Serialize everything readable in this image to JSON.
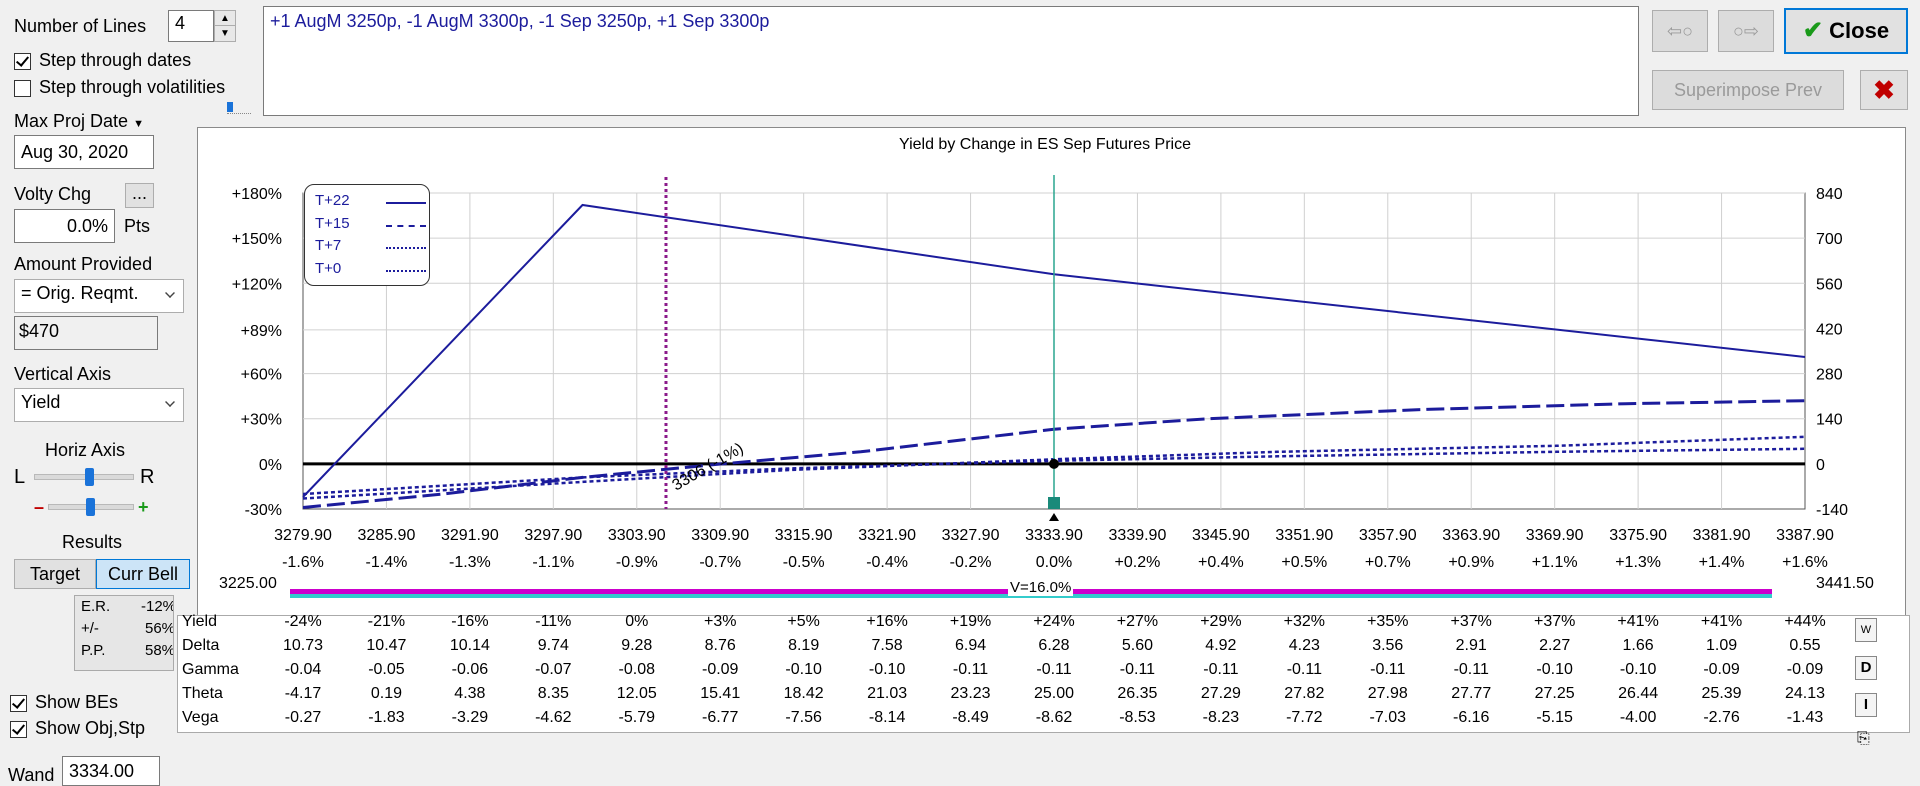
{
  "controls": {
    "num_lines_label": "Number of Lines",
    "num_lines_value": "4",
    "step_dates_label": "Step through dates",
    "step_dates_checked": true,
    "step_vols_label": "Step through volatilities",
    "step_vols_checked": false,
    "max_proj_label": "Max Proj Date",
    "max_proj_value": "Aug 30, 2020",
    "volty_label": "Volty Chg",
    "volty_btn": "...",
    "volty_value": "0.0%",
    "volty_unit": "Pts",
    "amount_label": "Amount Provided",
    "amount_select": "= Orig. Reqmt.",
    "amount_value": "$470",
    "vaxis_label": "Vertical Axis",
    "vaxis_select": "Yield",
    "haxis_label": "Horiz Axis",
    "haxis_l": "L",
    "haxis_r": "R",
    "minus": "–",
    "plus": "+",
    "results_label": "Results",
    "target_btn": "Target",
    "currbell_btn": "Curr Bell",
    "er_label": "E.R.",
    "er_value": "-12%",
    "pm_label": "+/-",
    "pm_value": "56%",
    "pp_label": "P.P.",
    "pp_value": "58%",
    "show_bes_label": "Show BEs",
    "show_obj_label": "Show Obj,Stp",
    "wand_label": "Wand",
    "wand_value": "3334.00"
  },
  "position_text": "+1 AugM 3250p, -1 AugM 3300p, -1 Sep 3250p, +1 Sep 3300p",
  "buttons": {
    "back": "⇦○",
    "fwd": "○⇨",
    "close": "Close",
    "superimpose": "Superimpose Prev"
  },
  "colors": {
    "series": "#1c1c9c",
    "accent_magenta": "#cc00cc",
    "accent_cyan": "#33cccc",
    "teal_line": "#2aa58f",
    "purple_dotted": "#8b1a8b",
    "close_x": "#c00000"
  },
  "chart_data": {
    "type": "line",
    "title": "Yield by Change in ES Sep Futures Price",
    "x_ticks": [
      "3279.90",
      "3285.90",
      "3291.90",
      "3297.90",
      "3303.90",
      "3309.90",
      "3315.90",
      "3321.90",
      "3327.90",
      "3333.90",
      "3339.90",
      "3345.90",
      "3351.90",
      "3357.90",
      "3363.90",
      "3369.90",
      "3375.90",
      "3381.90",
      "3387.90"
    ],
    "x_pct_ticks": [
      "-1.6%",
      "-1.4%",
      "-1.3%",
      "-1.1%",
      "-0.9%",
      "-0.7%",
      "-0.5%",
      "-0.4%",
      "-0.2%",
      "0.0%",
      "+0.2%",
      "+0.4%",
      "+0.5%",
      "+0.7%",
      "+0.9%",
      "+1.1%",
      "+1.3%",
      "+1.4%",
      "+1.6%"
    ],
    "xlim": [
      3279.9,
      3387.9
    ],
    "ylim_left": [
      -30,
      180
    ],
    "y_left_ticks": [
      "+180%",
      "+150%",
      "+120%",
      "+89%",
      "+60%",
      "+30%",
      "0%",
      "-30%"
    ],
    "y_left_values": [
      180,
      150,
      120,
      89,
      60,
      30,
      0,
      -30
    ],
    "ylim_right": [
      -140,
      840
    ],
    "y_right_ticks": [
      "840",
      "700",
      "560",
      "420",
      "280",
      "140",
      "0",
      "-140"
    ],
    "y_right_values": [
      840,
      700,
      560,
      420,
      280,
      140,
      0,
      -140
    ],
    "grid": true,
    "legend_position": "top-left",
    "series": [
      {
        "name": "T+22",
        "style": "solid",
        "x": [
          3279.9,
          3300.0,
          3333.9,
          3387.9
        ],
        "y": [
          -22,
          172,
          126,
          71
        ]
      },
      {
        "name": "T+15",
        "style": "dash-dot",
        "x": [
          3279.9,
          3290.0,
          3300.0,
          3310.0,
          3320.0,
          3333.9,
          3345.0,
          3360.0,
          3375.0,
          3387.9
        ],
        "y": [
          -29,
          -20,
          -9,
          0,
          8,
          23,
          30,
          36,
          40,
          42
        ]
      },
      {
        "name": "T+7",
        "style": "dotted",
        "x": [
          3279.9,
          3300.0,
          3315.0,
          3333.9,
          3350.0,
          3370.0,
          3387.9
        ],
        "y": [
          -23,
          -12,
          -4,
          3,
          8,
          12,
          18
        ]
      },
      {
        "name": "T+0",
        "style": "dotted",
        "x": [
          3279.9,
          3300.0,
          3315.0,
          3333.9,
          3350.0,
          3370.0,
          3387.9
        ],
        "y": [
          -20,
          -9,
          -3,
          2,
          5,
          8,
          10
        ]
      }
    ],
    "breakeven_x": 3306.0,
    "breakeven_label": "3306 (-1%)",
    "current_x": 3333.9,
    "range_low": "3225.00",
    "range_high": "3441.50",
    "vol_label": "V=16.0%"
  },
  "greeks": {
    "rows": [
      {
        "name": "Yield",
        "values": [
          "-24%",
          "-21%",
          "-16%",
          "-11%",
          "0%",
          "+3%",
          "+5%",
          "+16%",
          "+19%",
          "+24%",
          "+27%",
          "+29%",
          "+32%",
          "+35%",
          "+37%",
          "+37%",
          "+41%",
          "+41%",
          "+44%"
        ]
      },
      {
        "name": "Delta",
        "values": [
          "10.73",
          "10.47",
          "10.14",
          "9.74",
          "9.28",
          "8.76",
          "8.19",
          "7.58",
          "6.94",
          "6.28",
          "5.60",
          "4.92",
          "4.23",
          "3.56",
          "2.91",
          "2.27",
          "1.66",
          "1.09",
          "0.55"
        ]
      },
      {
        "name": "Gamma",
        "values": [
          "-0.04",
          "-0.05",
          "-0.06",
          "-0.07",
          "-0.08",
          "-0.09",
          "-0.10",
          "-0.10",
          "-0.11",
          "-0.11",
          "-0.11",
          "-0.11",
          "-0.11",
          "-0.11",
          "-0.11",
          "-0.10",
          "-0.10",
          "-0.09",
          "-0.09"
        ]
      },
      {
        "name": "Theta",
        "values": [
          "-4.17",
          "0.19",
          "4.38",
          "8.35",
          "12.05",
          "15.41",
          "18.42",
          "21.03",
          "23.23",
          "25.00",
          "26.35",
          "27.29",
          "27.82",
          "27.98",
          "27.77",
          "27.25",
          "26.44",
          "25.39",
          "24.13"
        ]
      },
      {
        "name": "Vega",
        "values": [
          "-0.27",
          "-1.83",
          "-3.29",
          "-4.62",
          "-5.79",
          "-6.77",
          "-7.56",
          "-8.14",
          "-8.49",
          "-8.62",
          "-8.53",
          "-8.23",
          "-7.72",
          "-7.03",
          "-6.16",
          "-5.15",
          "-4.00",
          "-2.76",
          "-1.43"
        ]
      }
    ],
    "side_w": "W",
    "side_d": "D",
    "side_i": "I"
  }
}
